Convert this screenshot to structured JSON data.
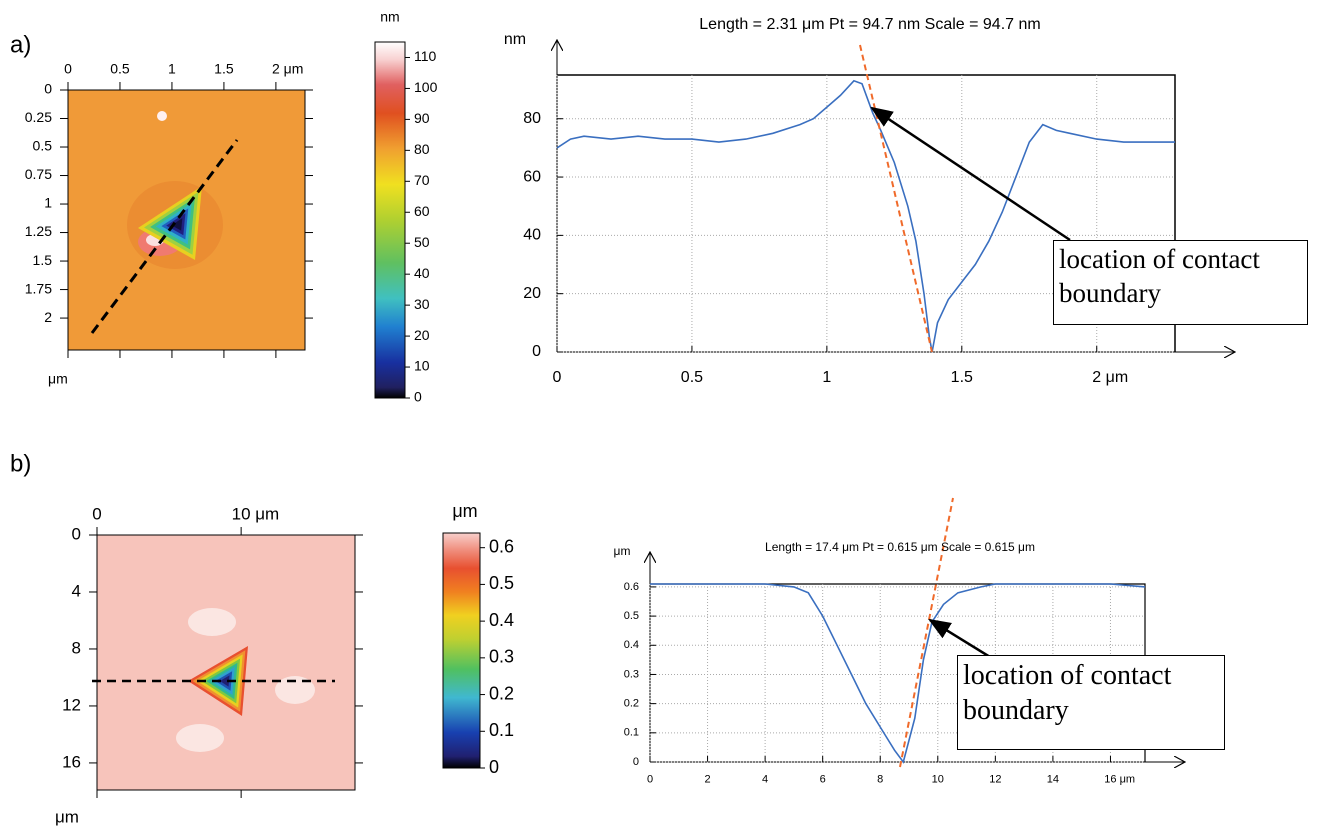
{
  "chart_data": [
    {
      "type": "heatmap",
      "panel_label": "a)",
      "ylabel": "μm",
      "xlim": [
        0,
        2.28
      ],
      "ylim": [
        0,
        2.28
      ],
      "xticks": [
        0,
        0.5,
        1,
        1.5,
        {
          "value": 2,
          "label": "2 μm"
        }
      ],
      "yticks": [
        0,
        0.25,
        0.5,
        0.75,
        1,
        1.25,
        1.5,
        1.75,
        2
      ]
    },
    {
      "type": "colorbar",
      "label": "nm",
      "ylim": [
        0,
        115
      ],
      "yticks": [
        0,
        10,
        20,
        30,
        40,
        50,
        60,
        70,
        80,
        90,
        100,
        110
      ]
    },
    {
      "type": "line",
      "title": "Length = 2.31 μm  Pt = 94.7 nm  Scale = 94.7 nm",
      "ylabel": "nm",
      "annotation": "location of contact boundary",
      "grid": true,
      "xlim": [
        0,
        2.29
      ],
      "ylim": [
        0,
        95
      ],
      "xticks": [
        0,
        0.5,
        1,
        1.5,
        {
          "value": 2,
          "label": "2 μm"
        }
      ],
      "yticks": [
        0,
        20,
        40,
        60,
        80
      ],
      "x": [
        0,
        0.05,
        0.1,
        0.2,
        0.3,
        0.4,
        0.5,
        0.6,
        0.7,
        0.8,
        0.9,
        0.95,
        1.0,
        1.05,
        1.1,
        1.13,
        1.17,
        1.2,
        1.25,
        1.3,
        1.33,
        1.36,
        1.38,
        1.39,
        1.41,
        1.45,
        1.5,
        1.55,
        1.6,
        1.65,
        1.7,
        1.75,
        1.8,
        1.85,
        1.9,
        2.0,
        2.1,
        2.2,
        2.29
      ],
      "color": "#3a6fc0",
      "values": [
        70,
        73,
        74,
        73,
        74,
        73,
        73,
        72,
        73,
        75,
        78,
        80,
        84,
        88,
        93,
        92,
        82,
        76,
        65,
        50,
        38,
        20,
        5,
        0,
        10,
        18,
        24,
        30,
        38,
        48,
        60,
        72,
        78,
        76,
        75,
        73,
        72,
        72,
        72
      ]
    },
    {
      "type": "heatmap",
      "panel_label": "b)",
      "ylabel": "μm",
      "xlim": [
        0,
        17.9
      ],
      "ylim": [
        0,
        17.9
      ],
      "xticks": [
        0,
        {
          "value": 10,
          "label": "10 μm"
        }
      ],
      "yticks": [
        0,
        4,
        8,
        12,
        16
      ]
    },
    {
      "type": "colorbar",
      "label": "μm",
      "ylim": [
        0,
        0.64
      ],
      "yticks": [
        0,
        0.1,
        0.2,
        0.3,
        0.4,
        0.5,
        0.6
      ]
    },
    {
      "type": "line",
      "title": "Length = 17.4 μm  Pt = 0.615 μm  Scale = 0.615 μm",
      "ylabel": "μm",
      "annotation": "location of contact boundary",
      "grid": true,
      "xlim": [
        0,
        17.2
      ],
      "ylim": [
        0,
        0.61
      ],
      "xticks": [
        0,
        2,
        4,
        6,
        8,
        10,
        12,
        14,
        {
          "value": 16,
          "label": "16 μm"
        }
      ],
      "yticks": [
        0,
        0.1,
        0.2,
        0.3,
        0.4,
        0.5,
        0.6
      ],
      "x": [
        0,
        2,
        4,
        5,
        5.5,
        6,
        6.5,
        7,
        7.5,
        8,
        8.5,
        8.8,
        9.2,
        9.5,
        9.8,
        10.2,
        10.7,
        11.5,
        12,
        14,
        16,
        17.2
      ],
      "color": "#3a6fc0",
      "values": [
        0.61,
        0.61,
        0.61,
        0.6,
        0.58,
        0.5,
        0.4,
        0.3,
        0.2,
        0.12,
        0.04,
        0,
        0.15,
        0.35,
        0.48,
        0.54,
        0.58,
        0.6,
        0.61,
        0.61,
        0.61,
        0.6
      ]
    }
  ]
}
